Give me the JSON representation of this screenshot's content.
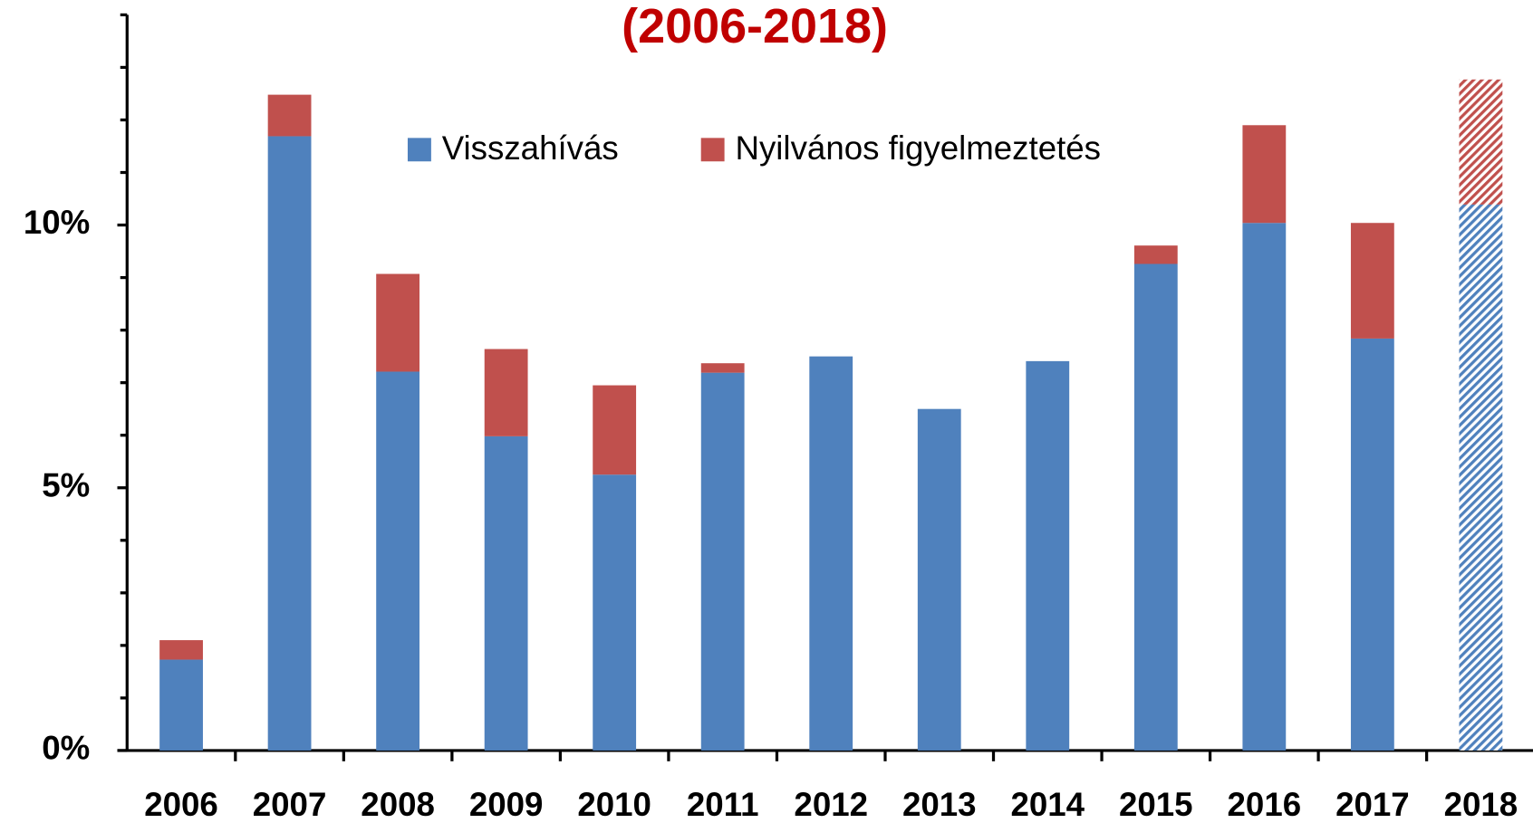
{
  "chart_data": {
    "type": "stacked_bar",
    "title": "(2006-2018)",
    "categories": [
      "2006",
      "2007",
      "2008",
      "2009",
      "2010",
      "2011",
      "2012",
      "2013",
      "2014",
      "2015",
      "2016",
      "2017",
      "2018"
    ],
    "series": [
      {
        "name": "Visszahívás",
        "color": "#4f81bd",
        "values": [
          1.73,
          11.69,
          7.21,
          5.98,
          5.25,
          7.19,
          7.5,
          6.5,
          7.41,
          9.26,
          10.04,
          7.84,
          10.39
        ]
      },
      {
        "name": "Nyilvános figyelmeztetés",
        "color": "#c0504d",
        "values": [
          0.37,
          0.79,
          1.86,
          1.66,
          1.7,
          0.18,
          0,
          0,
          0,
          0.35,
          1.86,
          2.2,
          2.38
        ]
      }
    ],
    "hatched": [
      false,
      false,
      false,
      false,
      false,
      false,
      false,
      false,
      false,
      false,
      false,
      false,
      true
    ],
    "ylim": [
      0,
      14
    ],
    "yticks": [
      {
        "value": 0,
        "label": "0%"
      },
      {
        "value": 5,
        "label": "5%"
      },
      {
        "value": 10,
        "label": "10%"
      }
    ],
    "minor_yticks": [
      1,
      2,
      3,
      4,
      6,
      7,
      8,
      9,
      11,
      12,
      13,
      14
    ],
    "legend": "top"
  }
}
